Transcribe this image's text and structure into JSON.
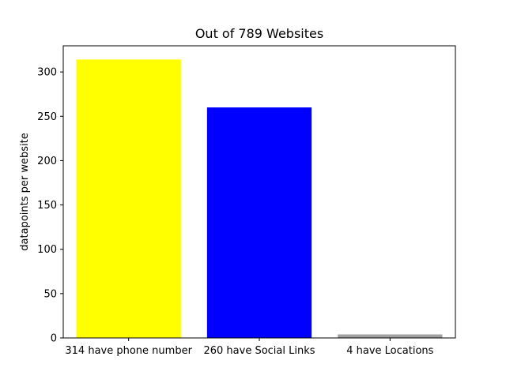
{
  "chart_data": {
    "type": "bar",
    "title": "Out of  789 Websites",
    "xlabel": "",
    "ylabel": "datapoints per website",
    "categories": [
      "314 have phone number",
      "260 have Social Links",
      "4 have Locations"
    ],
    "values": [
      314,
      260,
      4
    ],
    "colors": [
      "#ffff00",
      "#0000ff",
      "#a0a0a0"
    ],
    "ylim": [
      0,
      329.5
    ],
    "yticks": [
      0,
      50,
      100,
      150,
      200,
      250,
      300
    ],
    "grid": false,
    "legend": "none"
  }
}
